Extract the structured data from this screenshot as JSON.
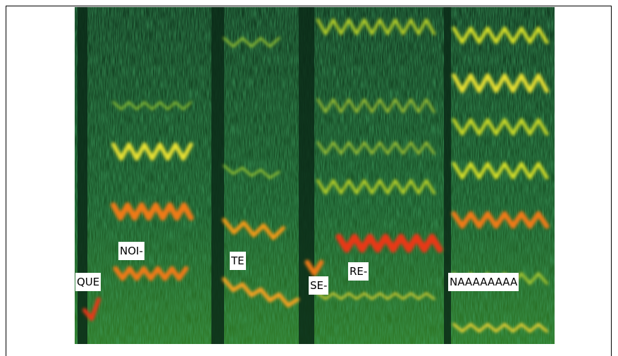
{
  "labels": [
    "QUE",
    "NOI-",
    "TE",
    "SE-",
    "RE-",
    "NAAAAAAAA"
  ]
}
